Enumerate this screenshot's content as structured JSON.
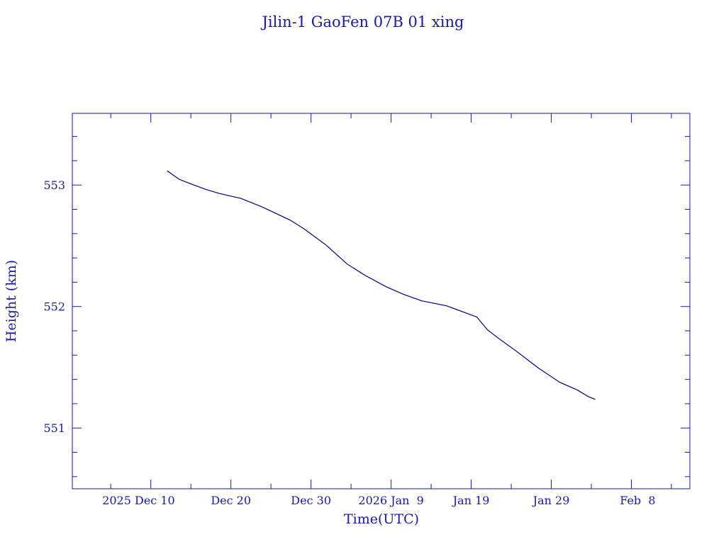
{
  "chart_data": {
    "type": "line",
    "title": "Jilin-1 GaoFen 07B 01 xing",
    "xlabel": "Time(UTC)",
    "ylabel": "Height (km)",
    "x_units": "days since 2025 Dec 10 (UTC)",
    "xlim": [
      -9.8,
      67.3
    ],
    "ylim": [
      550.5,
      553.59
    ],
    "x_major_ticks": [
      0,
      10,
      20,
      30,
      40,
      50,
      60
    ],
    "x_minor_step": 5,
    "x_tick_labels": [
      "2025 Dec 10",
      "Dec 20",
      "Dec 30",
      "2026 Jan  9",
      "Jan 19",
      "Jan 29",
      "Feb  8"
    ],
    "y_major_ticks": [
      551,
      552,
      553
    ],
    "y_tick_labels": [
      "551",
      "552",
      "553"
    ],
    "y_minor_step": 0.2,
    "grid": false,
    "colors": {
      "line": "#000080",
      "axis": "#1a1aa6",
      "text": "#1a1aa6"
    },
    "series": [
      {
        "name": "Height",
        "x": [
          2.04,
          3.54,
          4.87,
          6.81,
          8.58,
          11.24,
          13.89,
          17.43,
          19.2,
          21.86,
          24.51,
          26.73,
          29.38,
          31.59,
          33.81,
          36.9,
          39.56,
          40.71,
          42.04,
          43.54,
          45.75,
          48.41,
          51.06,
          53.27,
          54.6,
          55.49
        ],
        "y": [
          553.117,
          553.047,
          553.012,
          552.965,
          552.93,
          552.89,
          552.82,
          552.71,
          552.636,
          552.507,
          552.35,
          552.257,
          552.163,
          552.099,
          552.047,
          552.006,
          551.942,
          551.913,
          551.808,
          551.732,
          551.627,
          551.493,
          551.376,
          551.312,
          551.259,
          551.236
        ]
      }
    ]
  }
}
